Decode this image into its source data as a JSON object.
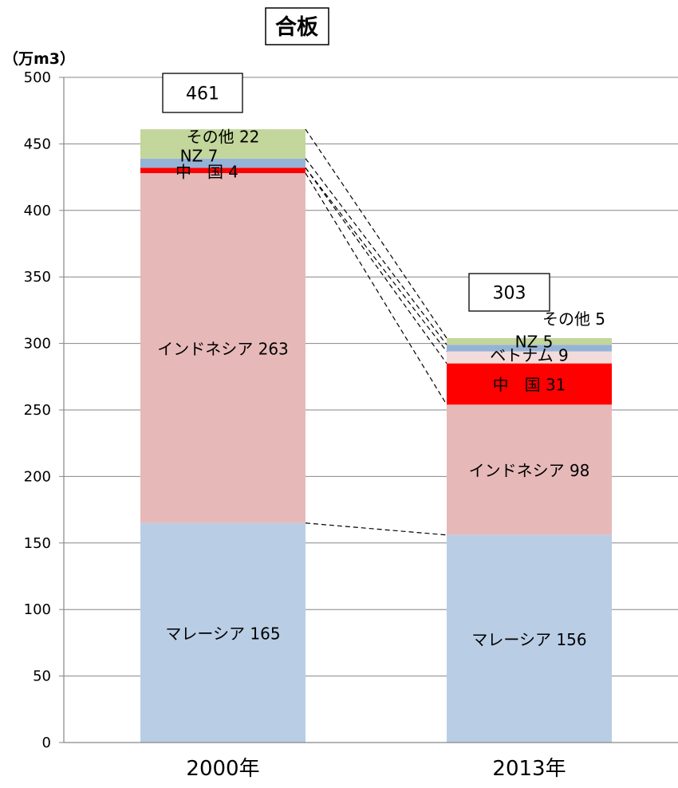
{
  "chart_data": {
    "type": "bar",
    "stacked": true,
    "title": "合板",
    "ylabel": "（万m3）",
    "xlabel": "",
    "ylim": [
      0,
      500
    ],
    "yticks": [
      0,
      50,
      100,
      150,
      200,
      250,
      300,
      350,
      400,
      450,
      500
    ],
    "grid": true,
    "categories": [
      "2000年",
      "2013年"
    ],
    "totals": [
      "461",
      "303"
    ],
    "series": [
      {
        "key": "malaysia",
        "name": "マレーシア",
        "color": "#b9cde5",
        "values": [
          165,
          156
        ],
        "labels": [
          "マレーシア 165",
          "マレーシア 156"
        ]
      },
      {
        "key": "indonesia",
        "name": "インドネシア",
        "color": "#e6b9b8",
        "values": [
          263,
          98
        ],
        "labels": [
          "インドネシア 263",
          "インドネシア 98"
        ]
      },
      {
        "key": "china",
        "name": "中　国",
        "color": "#ff0000",
        "values": [
          4,
          31
        ],
        "labels": [
          "中　国 4",
          "中　国 31"
        ]
      },
      {
        "key": "vietnam",
        "name": "ベトナム",
        "color": "#f2dcdb",
        "values": [
          0,
          9
        ],
        "labels": [
          "",
          "ベトナム 9"
        ]
      },
      {
        "key": "nz",
        "name": "NZ",
        "color": "#95b3d7",
        "values": [
          7,
          5
        ],
        "labels": [
          "NZ 7",
          "NZ 5"
        ]
      },
      {
        "key": "other",
        "name": "その他",
        "color": "#c3d69b",
        "values": [
          22,
          5
        ],
        "labels": [
          "その他 22",
          "その他 5"
        ]
      }
    ]
  }
}
